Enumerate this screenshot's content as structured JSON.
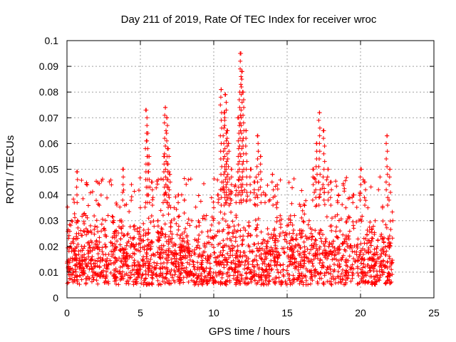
{
  "chart_data": {
    "type": "scatter",
    "title": "Day 211 of 2019, Rate Of TEC Index for receiver wroc",
    "xlabel": "GPS time / hours",
    "ylabel": "ROTI / TECUs",
    "xlim": [
      0,
      25
    ],
    "ylim": [
      0,
      0.1
    ],
    "x_ticks": [
      0,
      5,
      10,
      15,
      20,
      25
    ],
    "x_tick_labels": [
      "0",
      "5",
      "10",
      "15",
      "20",
      "25"
    ],
    "y_ticks": [
      0,
      0.01,
      0.02,
      0.03,
      0.04,
      0.05,
      0.06,
      0.07,
      0.08,
      0.09,
      0.1
    ],
    "y_tick_labels": [
      "0",
      "0.01",
      "0.02",
      "0.03",
      "0.04",
      "0.05",
      "0.06",
      "0.07",
      "0.08",
      "0.09",
      "0.1"
    ],
    "grid": true,
    "marker": "+",
    "marker_color": "#ff0000",
    "series": [
      {
        "name": "ROTI",
        "note": "dense cloud of samples spanning 0 to ~22.2 h, mostly 0.005-0.035 TECU with spikes",
        "x": [
          0.1,
          0.3,
          0.5,
          0.7,
          0.8,
          1.0,
          1.3,
          1.6,
          2.0,
          2.4,
          2.8,
          3.2,
          3.6,
          3.8,
          4.2,
          4.6,
          5.0,
          5.3,
          5.4,
          5.5,
          5.6,
          5.8,
          6.2,
          6.5,
          6.6,
          6.7,
          6.8,
          6.9,
          7.0,
          7.3,
          7.6,
          8.0,
          8.5,
          9.0,
          9.5,
          10.0,
          10.3,
          10.5,
          10.7,
          10.8,
          10.9,
          11.0,
          11.2,
          11.5,
          11.7,
          11.8,
          11.9,
          12.0,
          12.2,
          12.5,
          12.8,
          13.0,
          13.2,
          13.5,
          14.0,
          14.3,
          14.5,
          15.0,
          15.5,
          16.0,
          16.5,
          16.8,
          17.0,
          17.2,
          17.5,
          17.8,
          18.0,
          18.5,
          19.0,
          19.5,
          20.0,
          20.3,
          20.5,
          21.0,
          21.5,
          21.8,
          22.0,
          22.2
        ],
        "y": [
          0.012,
          0.03,
          0.018,
          0.049,
          0.025,
          0.02,
          0.015,
          0.028,
          0.022,
          0.018,
          0.032,
          0.025,
          0.03,
          0.05,
          0.022,
          0.028,
          0.035,
          0.02,
          0.073,
          0.064,
          0.055,
          0.045,
          0.03,
          0.025,
          0.055,
          0.074,
          0.07,
          0.058,
          0.048,
          0.035,
          0.04,
          0.038,
          0.03,
          0.028,
          0.032,
          0.035,
          0.04,
          0.081,
          0.072,
          0.079,
          0.065,
          0.06,
          0.05,
          0.04,
          0.07,
          0.095,
          0.088,
          0.08,
          0.065,
          0.05,
          0.045,
          0.063,
          0.055,
          0.04,
          0.048,
          0.035,
          0.03,
          0.028,
          0.032,
          0.025,
          0.03,
          0.05,
          0.06,
          0.072,
          0.065,
          0.05,
          0.045,
          0.04,
          0.035,
          0.04,
          0.05,
          0.045,
          0.035,
          0.03,
          0.035,
          0.063,
          0.05,
          0.03
        ],
        "cloud_band": {
          "x_start": 0.0,
          "x_end": 22.2,
          "y_low": 0.005,
          "y_high": 0.035
        }
      }
    ]
  }
}
